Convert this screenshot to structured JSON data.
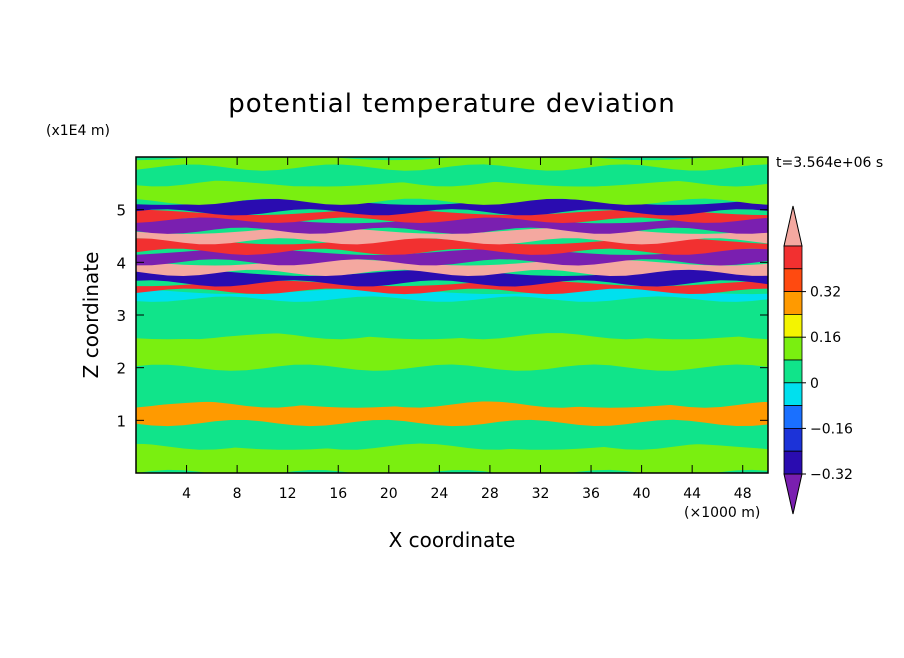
{
  "chart_data": {
    "type": "heatmap",
    "title": "potential temperature deviation",
    "xlabel": "X coordinate",
    "ylabel": "Z coordinate",
    "x_unit": "(×1000 m)",
    "y_unit": "(x1E4 m)",
    "time_label": "t=3.564e+06 s",
    "xlim": [
      0,
      50
    ],
    "ylim": [
      0,
      6
    ],
    "x_ticks": [
      "4",
      "8",
      "12",
      "16",
      "20",
      "24",
      "28",
      "32",
      "36",
      "40",
      "44",
      "48"
    ],
    "y_ticks": [
      "1",
      "2",
      "3",
      "4",
      "5"
    ],
    "colorbar": {
      "tick_labels": [
        "0.32",
        "0.16",
        "0",
        "−0.16",
        "−0.32"
      ],
      "tick_values": [
        0.32,
        0.16,
        0,
        -0.16,
        -0.32
      ],
      "levels": [
        -0.4,
        -0.32,
        -0.24,
        -0.16,
        -0.08,
        0,
        0.08,
        0.16,
        0.24,
        0.32,
        0.4
      ],
      "colors": [
        "#7a1fb0",
        "#2a0cb0",
        "#1c33d8",
        "#1a70ff",
        "#00e0ee",
        "#10e48a",
        "#7aef10",
        "#f4f400",
        "#ff9a00",
        "#ff4a10",
        "#f23030",
        "#f4a8a0"
      ]
    },
    "bands": [
      {
        "z": 0.0,
        "value": 0.04
      },
      {
        "z": 0.5,
        "value": -0.04
      },
      {
        "z": 0.95,
        "value": 0.2
      },
      {
        "z": 1.3,
        "value": -0.04
      },
      {
        "z": 2.0,
        "value": 0.04
      },
      {
        "z": 2.6,
        "value": -0.04
      },
      {
        "z": 3.3,
        "value": -0.12
      },
      {
        "z": 3.45,
        "value": 0.36
      },
      {
        "z": 3.6,
        "value": -0.36
      },
      {
        "z": 3.8,
        "value": 0.44
      },
      {
        "z": 4.0,
        "value": -0.44
      },
      {
        "z": 4.2,
        "value": 0.36
      },
      {
        "z": 4.4,
        "value": 0.44
      },
      {
        "z": 4.6,
        "value": -0.44
      },
      {
        "z": 4.8,
        "value": 0.36
      },
      {
        "z": 4.95,
        "value": -0.36
      },
      {
        "z": 5.15,
        "value": 0.04
      },
      {
        "z": 5.5,
        "value": -0.04
      },
      {
        "z": 5.8,
        "value": 0.04
      },
      {
        "z": 6.0,
        "value": 0.04
      }
    ]
  }
}
